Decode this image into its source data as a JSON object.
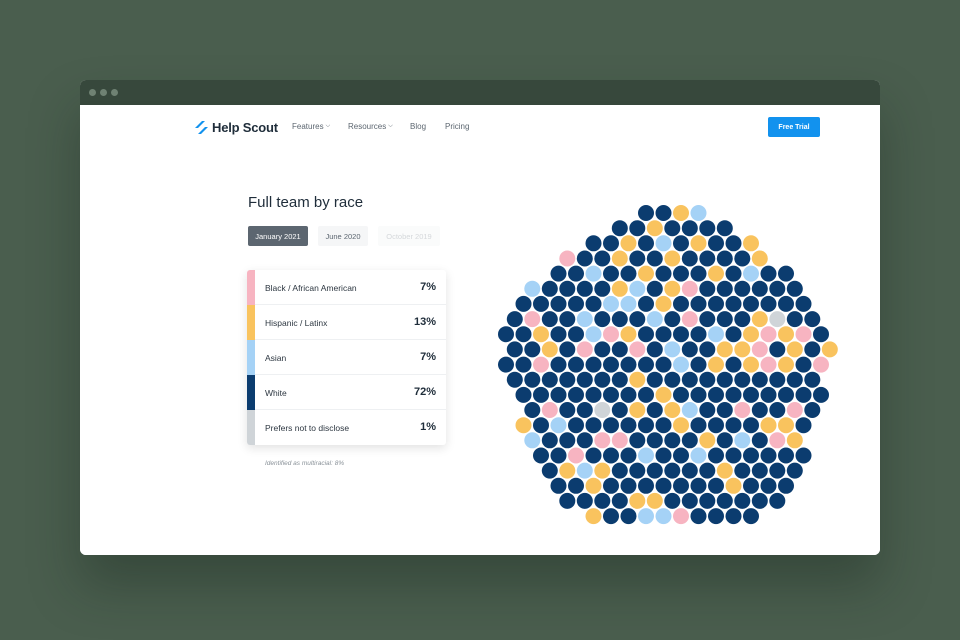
{
  "brand": {
    "name": "Help Scout",
    "accent": "#1292ee"
  },
  "nav": {
    "items": [
      {
        "label": "Features",
        "dropdown": true
      },
      {
        "label": "Resources",
        "dropdown": true
      },
      {
        "label": "Blog",
        "dropdown": false
      },
      {
        "label": "Pricing",
        "dropdown": false
      }
    ],
    "cta_label": "Free Trial"
  },
  "section": {
    "title": "Full team by race",
    "tabs": [
      "January 2021",
      "June 2020",
      "October 2019"
    ],
    "active_tab": "January 2021",
    "rows": [
      {
        "label": "Black / African American",
        "value": "7%",
        "color": "#f7b4c1"
      },
      {
        "label": "Hispanic / Latinx",
        "value": "13%",
        "color": "#f9c35e"
      },
      {
        "label": "Asian",
        "value": "7%",
        "color": "#a5d2f6"
      },
      {
        "label": "White",
        "value": "72%",
        "color": "#0b3c6f"
      },
      {
        "label": "Prefers not to disclose",
        "value": "1%",
        "color": "#cfd4d8"
      }
    ],
    "footnote": "Identified as multiracial: 8%"
  }
}
